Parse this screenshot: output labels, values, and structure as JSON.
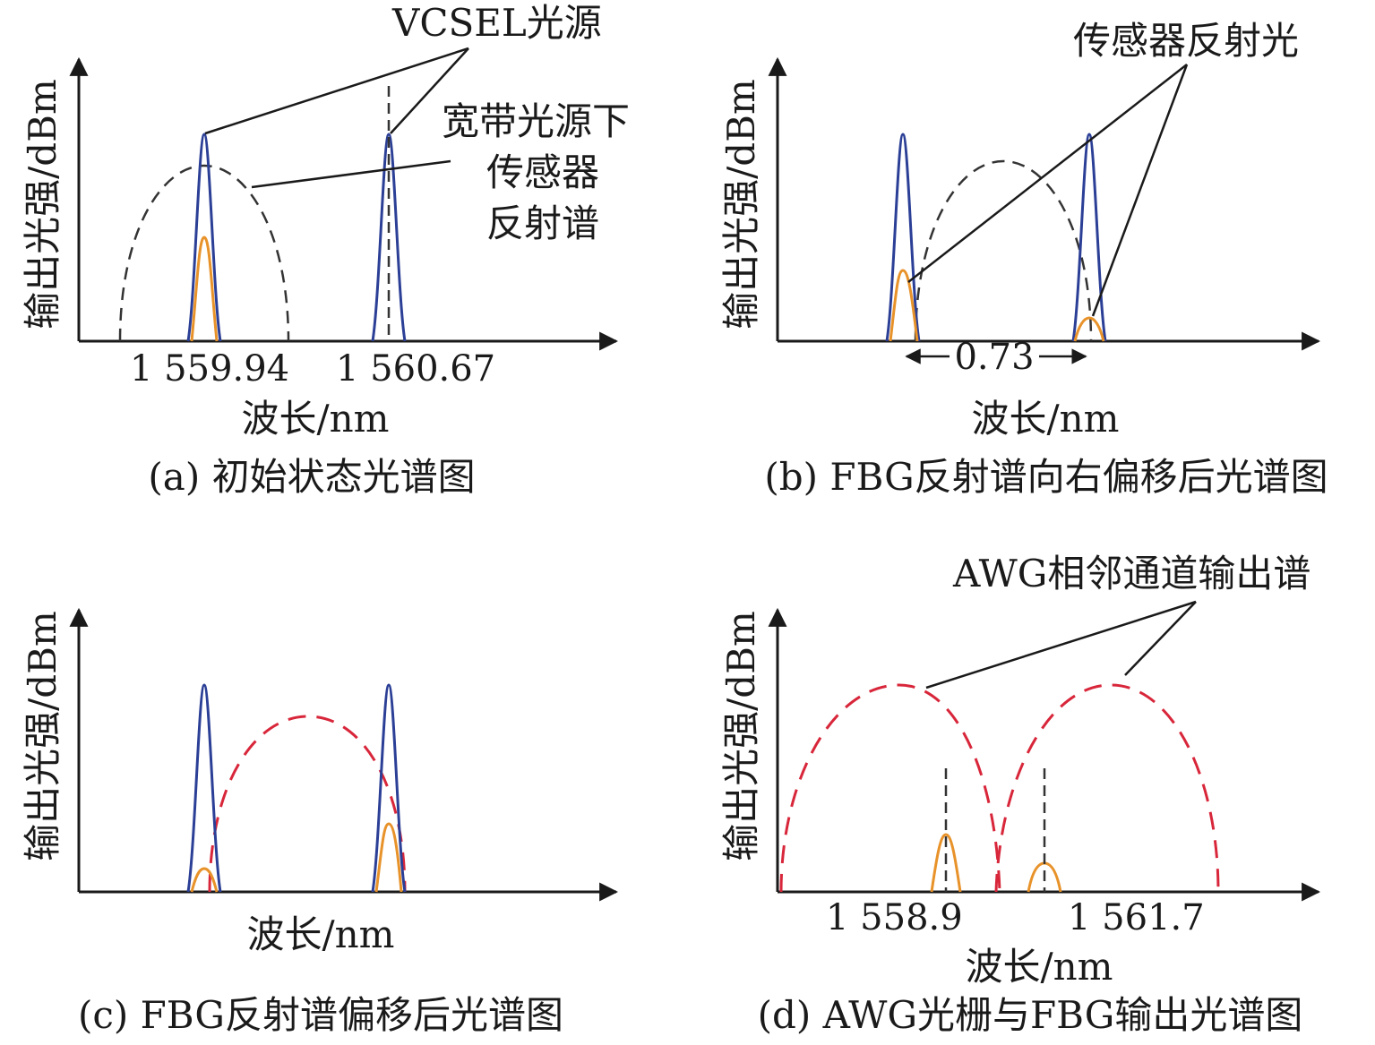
{
  "y_axis_label": "输出光强/dBm",
  "x_axis_label": "波长/nm",
  "panels": {
    "a": {
      "caption": "(a) 初始状态光谱图",
      "tick_left": "1 559.94",
      "tick_right": "1 560.67",
      "annotation_vcsel": "VCSEL光源",
      "annotation_broadband": [
        "宽带光源下",
        "传感器",
        "反射谱"
      ]
    },
    "b": {
      "caption": "(b) FBG反射谱向右偏移后光谱图",
      "annotation_reflect": "传感器反射光",
      "spacing_label": "0.73"
    },
    "c": {
      "caption": "(c) FBG反射谱偏移后光谱图"
    },
    "d": {
      "caption": "(d) AWG光栅与FBG输出光谱图",
      "annotation_awg": "AWG相邻通道输出谱",
      "tick_left": "1 558.9",
      "tick_right": "1 561.7"
    }
  },
  "colors": {
    "vcsel": "#2b3f96",
    "fbg_reflection": "#e8922a",
    "awg_channel": "#d8263a",
    "broadband": "#333333"
  }
}
